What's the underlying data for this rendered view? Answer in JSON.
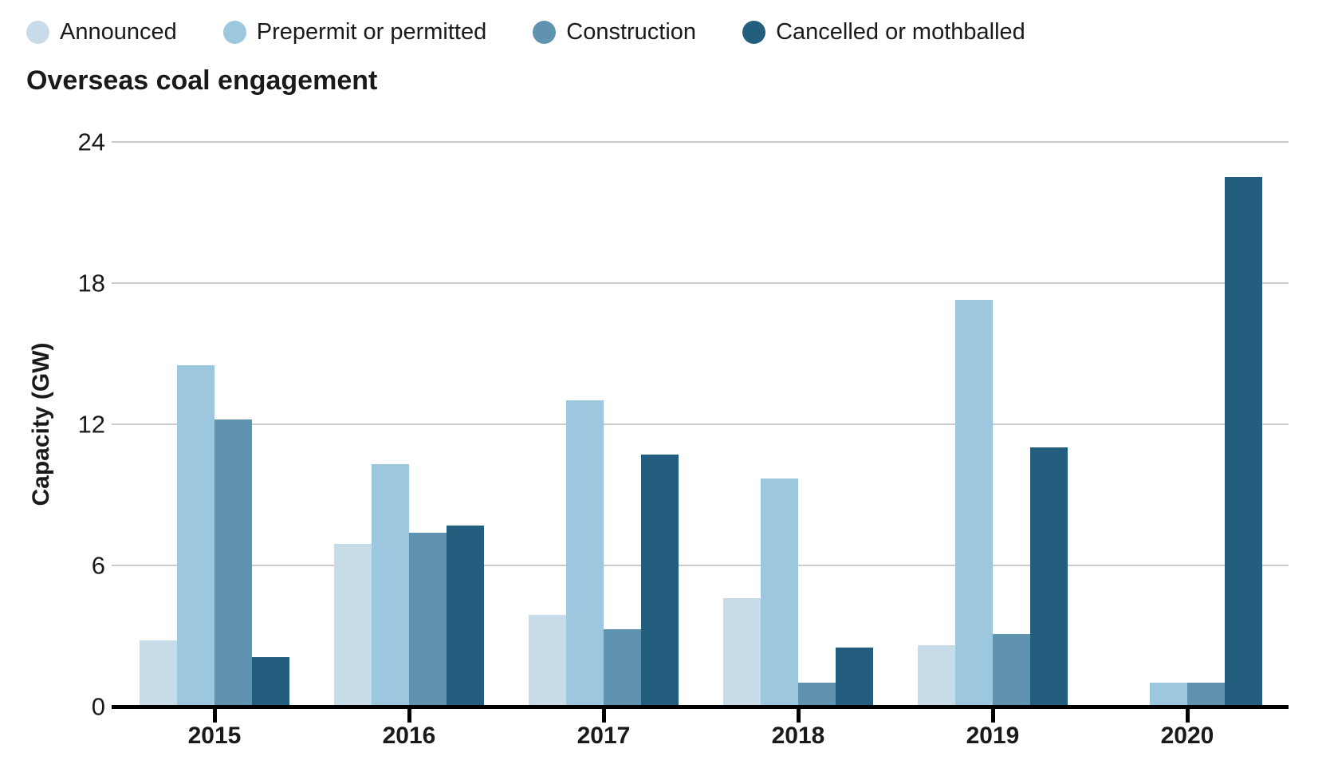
{
  "chart_data": {
    "type": "bar",
    "title": "Overseas coal engagement",
    "ylabel": "Capacity (GW)",
    "xlabel": "",
    "categories": [
      "2015",
      "2016",
      "2017",
      "2018",
      "2019",
      "2020"
    ],
    "series": [
      {
        "name": "Announced",
        "color": "#c8dbe8",
        "values": [
          2.8,
          6.9,
          3.9,
          4.6,
          2.6,
          0
        ]
      },
      {
        "name": "Prepermit or permitted",
        "color": "#9dc7de",
        "values": [
          14.5,
          10.3,
          13.0,
          9.7,
          17.3,
          1.0
        ]
      },
      {
        "name": "Construction",
        "color": "#6093af",
        "values": [
          12.2,
          7.4,
          3.3,
          1.0,
          3.1,
          1.0
        ]
      },
      {
        "name": "Cancelled or mothballed",
        "color": "#235e7e",
        "values": [
          2.1,
          7.7,
          10.7,
          2.5,
          11.0,
          22.5
        ]
      }
    ],
    "ylim": [
      0,
      24
    ],
    "yticks": [
      0,
      6,
      12,
      18,
      24
    ],
    "grid": true,
    "legend_position": "top"
  },
  "colors": {
    "text": "#1a1a1a",
    "gridline": "#cbcbcb",
    "axis": "#000000",
    "background": "#ffffff"
  }
}
